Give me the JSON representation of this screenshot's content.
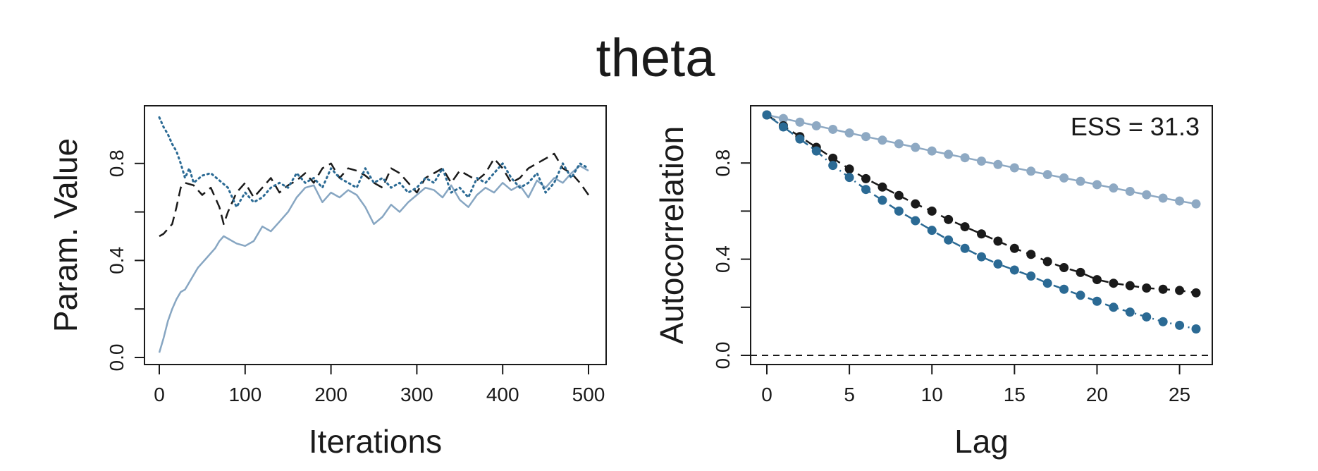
{
  "title": "theta",
  "chart_data": [
    {
      "type": "line",
      "xlabel": "Iterations",
      "ylabel": "Param. Value",
      "xlim": [
        0,
        500
      ],
      "ylim": [
        0,
        1
      ],
      "xticks": [
        0,
        100,
        200,
        300,
        400,
        500
      ],
      "yticks": [
        0.0,
        0.2,
        0.4,
        0.6,
        0.8
      ],
      "ytick_labels": [
        "0.0",
        "",
        "0.4",
        "",
        "0.8"
      ],
      "legend": "none",
      "grid": false,
      "series": [
        {
          "style": "solid",
          "color": "#87a6c2",
          "x": [
            0,
            5,
            10,
            15,
            20,
            25,
            30,
            35,
            40,
            45,
            50,
            55,
            60,
            65,
            70,
            75,
            80,
            90,
            100,
            110,
            120,
            130,
            140,
            150,
            160,
            170,
            180,
            190,
            200,
            210,
            220,
            230,
            240,
            250,
            260,
            270,
            280,
            290,
            300,
            310,
            320,
            330,
            340,
            350,
            360,
            370,
            380,
            390,
            400,
            410,
            420,
            430,
            440,
            450,
            460,
            470,
            480,
            490,
            500
          ],
          "y": [
            0.02,
            0.08,
            0.15,
            0.2,
            0.24,
            0.27,
            0.28,
            0.31,
            0.34,
            0.37,
            0.39,
            0.41,
            0.43,
            0.45,
            0.48,
            0.5,
            0.49,
            0.47,
            0.46,
            0.48,
            0.54,
            0.52,
            0.56,
            0.6,
            0.66,
            0.7,
            0.71,
            0.64,
            0.68,
            0.66,
            0.69,
            0.67,
            0.62,
            0.55,
            0.58,
            0.63,
            0.6,
            0.64,
            0.67,
            0.7,
            0.69,
            0.66,
            0.71,
            0.65,
            0.62,
            0.67,
            0.7,
            0.68,
            0.72,
            0.69,
            0.71,
            0.66,
            0.73,
            0.7,
            0.74,
            0.72,
            0.76,
            0.79,
            0.77
          ]
        },
        {
          "style": "dashed",
          "color": "#1a1a1a",
          "x": [
            0,
            5,
            10,
            15,
            20,
            25,
            30,
            40,
            50,
            60,
            70,
            75,
            80,
            90,
            100,
            110,
            120,
            130,
            140,
            150,
            160,
            170,
            180,
            190,
            200,
            210,
            220,
            230,
            240,
            250,
            260,
            270,
            280,
            290,
            300,
            310,
            320,
            330,
            340,
            350,
            360,
            370,
            380,
            390,
            400,
            410,
            420,
            430,
            440,
            450,
            460,
            470,
            480,
            490,
            500
          ],
          "y": [
            0.5,
            0.51,
            0.53,
            0.55,
            0.62,
            0.7,
            0.72,
            0.71,
            0.67,
            0.7,
            0.62,
            0.55,
            0.6,
            0.68,
            0.72,
            0.66,
            0.7,
            0.74,
            0.68,
            0.71,
            0.73,
            0.76,
            0.72,
            0.78,
            0.8,
            0.74,
            0.78,
            0.77,
            0.75,
            0.72,
            0.7,
            0.78,
            0.76,
            0.72,
            0.68,
            0.74,
            0.76,
            0.78,
            0.72,
            0.77,
            0.75,
            0.73,
            0.76,
            0.82,
            0.78,
            0.72,
            0.74,
            0.78,
            0.8,
            0.82,
            0.84,
            0.78,
            0.76,
            0.72,
            0.67
          ]
        },
        {
          "style": "dotted",
          "color": "#2b6a94",
          "x": [
            0,
            5,
            10,
            15,
            20,
            25,
            30,
            35,
            40,
            50,
            60,
            70,
            80,
            90,
            100,
            110,
            120,
            130,
            140,
            150,
            160,
            170,
            180,
            190,
            200,
            210,
            220,
            230,
            240,
            250,
            260,
            270,
            280,
            290,
            300,
            310,
            320,
            330,
            340,
            350,
            360,
            370,
            380,
            390,
            400,
            410,
            420,
            430,
            440,
            450,
            460,
            470,
            480,
            490,
            500
          ],
          "y": [
            0.99,
            0.95,
            0.92,
            0.88,
            0.85,
            0.8,
            0.74,
            0.78,
            0.72,
            0.75,
            0.76,
            0.73,
            0.7,
            0.62,
            0.68,
            0.64,
            0.66,
            0.7,
            0.72,
            0.7,
            0.76,
            0.72,
            0.74,
            0.7,
            0.78,
            0.74,
            0.72,
            0.7,
            0.78,
            0.72,
            0.74,
            0.7,
            0.72,
            0.68,
            0.7,
            0.74,
            0.72,
            0.78,
            0.68,
            0.7,
            0.66,
            0.74,
            0.72,
            0.76,
            0.8,
            0.74,
            0.7,
            0.72,
            0.76,
            0.68,
            0.72,
            0.8,
            0.74,
            0.8,
            0.78
          ]
        }
      ]
    },
    {
      "type": "line",
      "xlabel": "Lag",
      "ylabel": "Autocorrelation",
      "xlim": [
        0,
        26
      ],
      "ylim": [
        0,
        1
      ],
      "xticks": [
        0,
        5,
        10,
        15,
        20,
        25
      ],
      "yticks": [
        0.0,
        0.2,
        0.4,
        0.6,
        0.8
      ],
      "ytick_labels": [
        "0.0",
        "",
        "0.4",
        "",
        "0.8"
      ],
      "hline": 0,
      "annotation": "ESS = 31.3",
      "legend": "none",
      "grid": false,
      "series": [
        {
          "style": "solid",
          "color": "#8ea9c3",
          "markers": true,
          "x": [
            0,
            1,
            2,
            3,
            4,
            5,
            6,
            7,
            8,
            9,
            10,
            11,
            12,
            13,
            14,
            15,
            16,
            17,
            18,
            19,
            20,
            21,
            22,
            23,
            24,
            25,
            26
          ],
          "y": [
            1.0,
            0.985,
            0.97,
            0.955,
            0.94,
            0.925,
            0.91,
            0.895,
            0.88,
            0.865,
            0.85,
            0.836,
            0.822,
            0.808,
            0.794,
            0.78,
            0.766,
            0.752,
            0.738,
            0.724,
            0.71,
            0.696,
            0.682,
            0.668,
            0.654,
            0.642,
            0.63
          ]
        },
        {
          "style": "dashed",
          "color": "#1a1a1a",
          "markers": true,
          "x": [
            0,
            1,
            2,
            3,
            4,
            5,
            6,
            7,
            8,
            9,
            10,
            11,
            12,
            13,
            14,
            15,
            16,
            17,
            18,
            19,
            20,
            21,
            22,
            23,
            24,
            25,
            26
          ],
          "y": [
            1.0,
            0.955,
            0.91,
            0.865,
            0.82,
            0.775,
            0.735,
            0.7,
            0.665,
            0.63,
            0.6,
            0.565,
            0.535,
            0.505,
            0.475,
            0.445,
            0.42,
            0.39,
            0.365,
            0.345,
            0.315,
            0.3,
            0.29,
            0.28,
            0.275,
            0.27,
            0.26
          ]
        },
        {
          "style": "dotdash",
          "color": "#2b6a94",
          "markers": true,
          "x": [
            0,
            1,
            2,
            3,
            4,
            5,
            6,
            7,
            8,
            9,
            10,
            11,
            12,
            13,
            14,
            15,
            16,
            17,
            18,
            19,
            20,
            21,
            22,
            23,
            24,
            25,
            26
          ],
          "y": [
            1.0,
            0.95,
            0.9,
            0.85,
            0.79,
            0.74,
            0.69,
            0.645,
            0.6,
            0.56,
            0.52,
            0.48,
            0.445,
            0.41,
            0.38,
            0.355,
            0.33,
            0.3,
            0.275,
            0.25,
            0.225,
            0.2,
            0.18,
            0.16,
            0.14,
            0.125,
            0.11
          ]
        }
      ]
    }
  ]
}
